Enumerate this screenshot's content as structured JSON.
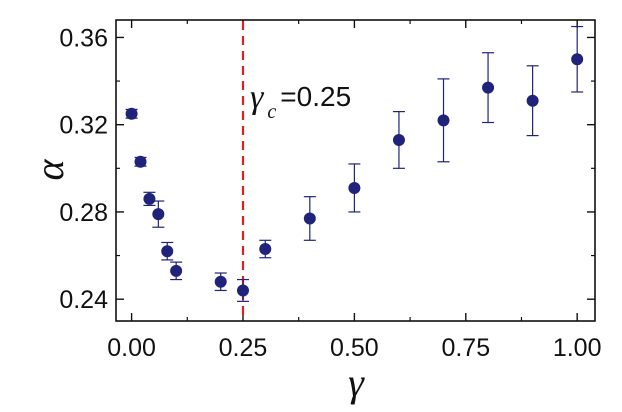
{
  "chart_data": {
    "type": "scatter",
    "title": "",
    "xlabel": "γ",
    "ylabel": "α",
    "xlim": [
      -0.035,
      1.04
    ],
    "ylim": [
      0.23,
      0.368
    ],
    "x_ticks": [
      0.0,
      0.25,
      0.5,
      0.75,
      1.0
    ],
    "x_tick_labels": [
      "0.00",
      "0.25",
      "0.50",
      "0.75",
      "1.00"
    ],
    "y_ticks": [
      0.24,
      0.28,
      0.32,
      0.36
    ],
    "y_tick_labels": [
      "0.24",
      "0.28",
      "0.32",
      "0.36"
    ],
    "grid": false,
    "legend": "none",
    "marker_color": "#1f237a",
    "points": [
      {
        "x": 0.0,
        "y": 0.325,
        "err": 0.002
      },
      {
        "x": 0.02,
        "y": 0.303,
        "err": 0.002
      },
      {
        "x": 0.04,
        "y": 0.286,
        "err": 0.003
      },
      {
        "x": 0.06,
        "y": 0.279,
        "err": 0.006
      },
      {
        "x": 0.08,
        "y": 0.262,
        "err": 0.004
      },
      {
        "x": 0.1,
        "y": 0.253,
        "err": 0.004
      },
      {
        "x": 0.2,
        "y": 0.248,
        "err": 0.004
      },
      {
        "x": 0.25,
        "y": 0.244,
        "err": 0.005
      },
      {
        "x": 0.3,
        "y": 0.263,
        "err": 0.004
      },
      {
        "x": 0.4,
        "y": 0.277,
        "err": 0.01
      },
      {
        "x": 0.5,
        "y": 0.291,
        "err": 0.011
      },
      {
        "x": 0.6,
        "y": 0.313,
        "err": 0.013
      },
      {
        "x": 0.7,
        "y": 0.322,
        "err": 0.019
      },
      {
        "x": 0.8,
        "y": 0.337,
        "err": 0.016
      },
      {
        "x": 0.9,
        "y": 0.331,
        "err": 0.016
      },
      {
        "x": 1.0,
        "y": 0.35,
        "err": 0.015
      }
    ],
    "annotation": {
      "type": "vertical-dashed-line",
      "x": 0.25,
      "color": "#e02020",
      "symbol": "γ",
      "subscript": "c",
      "text": "=0.25"
    }
  }
}
